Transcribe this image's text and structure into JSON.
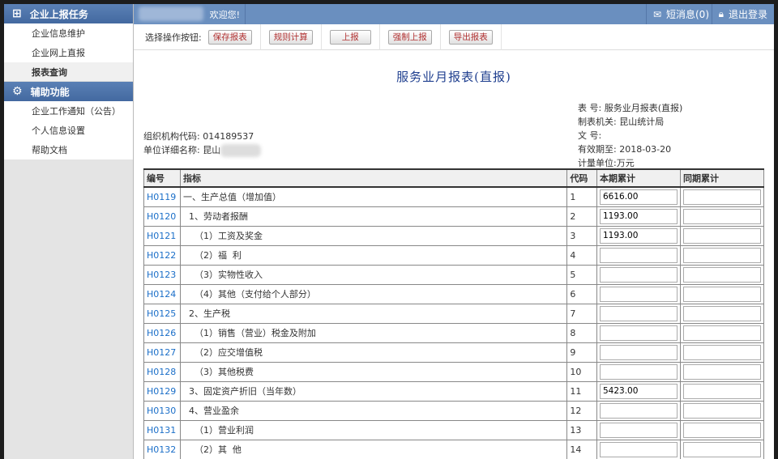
{
  "sidebar": {
    "sections": [
      {
        "title": "企业上报任务",
        "icon": "add-document-icon",
        "items": [
          "企业信息维护",
          "企业网上直报",
          "报表查询"
        ]
      },
      {
        "title": "辅助功能",
        "icon": "gear-icon",
        "items": [
          "企业工作通知（公告）",
          "个人信息设置",
          "帮助文档"
        ]
      }
    ]
  },
  "header": {
    "welcome": "欢迎您!",
    "messages": "短消息(0)",
    "logout": "退出登录"
  },
  "toolbar": {
    "label": "选择操作按钮:",
    "buttons": [
      "保存报表",
      "规则计算",
      "上报",
      "强制上报",
      "导出报表"
    ]
  },
  "report": {
    "title": "服务业月报表(直报)",
    "org_code_label": "组织机构代码:",
    "org_code": "014189537",
    "unit_label": "单位详细名称:",
    "unit": "昆山",
    "table_no_label": "表 号:",
    "table_no": "服务业月报表(直报)",
    "authority_label": "制表机关:",
    "authority": "昆山统计局",
    "doc_no_label": "文 号:",
    "doc_no": "",
    "valid_label": "有效期至:",
    "valid": "2018-03-20",
    "unit_measure_label": "计量单位:",
    "unit_measure": "万元",
    "columns": [
      "编号",
      "指标",
      "代码",
      "本期累计",
      "同期累计"
    ],
    "rows": [
      [
        "H0119",
        "一、生产总值（增加值）",
        "1",
        "6616.00",
        ""
      ],
      [
        "H0120",
        "  1、劳动者报酬",
        "2",
        "1193.00",
        ""
      ],
      [
        "H0121",
        "    （1）工资及奖金",
        "3",
        "1193.00",
        ""
      ],
      [
        "H0122",
        "    （2）福  利",
        "4",
        "",
        ""
      ],
      [
        "H0123",
        "    （3）实物性收入",
        "5",
        "",
        ""
      ],
      [
        "H0124",
        "    （4）其他（支付给个人部分）",
        "6",
        "",
        ""
      ],
      [
        "H0125",
        "  2、生产税",
        "7",
        "",
        ""
      ],
      [
        "H0126",
        "    （1）销售（营业）税金及附加",
        "8",
        "",
        ""
      ],
      [
        "H0127",
        "    （2）应交增值税",
        "9",
        "",
        ""
      ],
      [
        "H0128",
        "    （3）其他税费",
        "10",
        "",
        ""
      ],
      [
        "H0129",
        "  3、固定资产折旧（当年数）",
        "11",
        "5423.00",
        ""
      ],
      [
        "H0130",
        "  4、营业盈余",
        "12",
        "",
        ""
      ],
      [
        "H0131",
        "    （1）营业利润",
        "13",
        "",
        ""
      ],
      [
        "H0132",
        "    （2）其  他",
        "14",
        "",
        ""
      ]
    ]
  }
}
